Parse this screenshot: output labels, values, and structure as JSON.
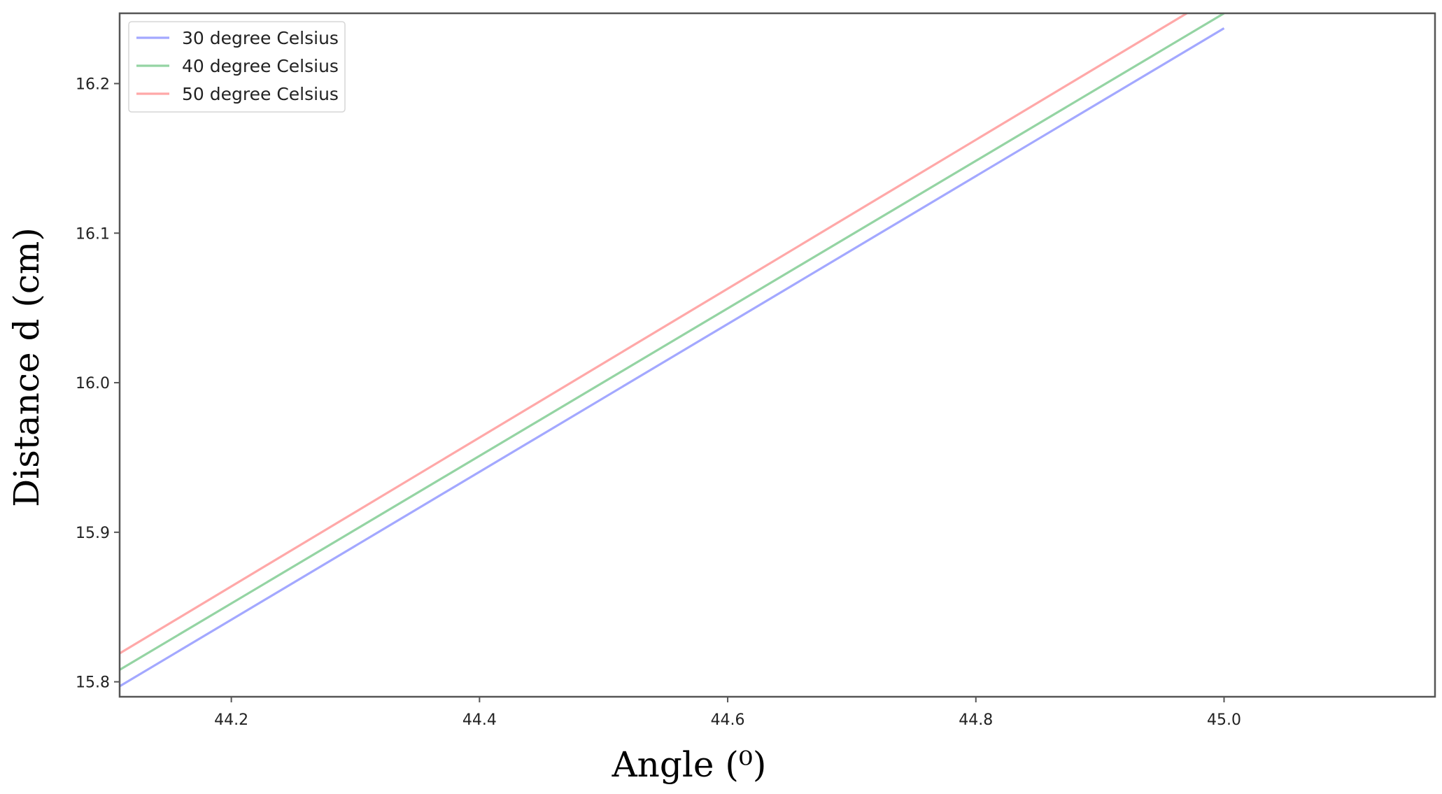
{
  "chart_data": {
    "type": "line",
    "title": "",
    "xlabel": "Angle (⁰)",
    "ylabel": "Distance d (cm)",
    "xlim": [
      44.11,
      45.17
    ],
    "ylim": [
      15.79,
      16.247
    ],
    "xticks": [
      44.2,
      44.4,
      44.6,
      44.8,
      45.0
    ],
    "xtick_labels": [
      "44.2",
      "44.4",
      "44.6",
      "44.8",
      "45.0"
    ],
    "yticks": [
      15.8,
      15.9,
      16.0,
      16.1,
      16.2
    ],
    "ytick_labels": [
      "15.8",
      "15.9",
      "16.0",
      "16.1",
      "16.2"
    ],
    "grid": false,
    "legend_position": "top-left",
    "series": [
      {
        "name": "30 degree Celsius",
        "color": "#a3a8ff",
        "x": [
          44.11,
          45.0
        ],
        "y": [
          15.797,
          16.237
        ]
      },
      {
        "name": "40 degree Celsius",
        "color": "#94d4a3",
        "x": [
          44.11,
          45.0
        ],
        "y": [
          15.808,
          16.247
        ]
      },
      {
        "name": "50 degree Celsius",
        "color": "#ffa8a8",
        "x": [
          44.11,
          44.97
        ],
        "y": [
          15.819,
          16.247
        ]
      }
    ]
  }
}
